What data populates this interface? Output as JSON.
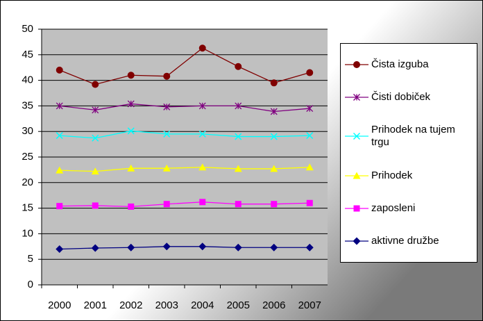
{
  "chart_data": {
    "type": "line",
    "categories": [
      "2000",
      "2001",
      "2002",
      "2003",
      "2004",
      "2005",
      "2006",
      "2007"
    ],
    "series": [
      {
        "name": "Čista izguba",
        "color": "#800000",
        "marker": "circle",
        "values": [
          42,
          39.2,
          41,
          40.8,
          46.3,
          42.7,
          39.5,
          41.5
        ]
      },
      {
        "name": "Čisti dobiček",
        "color": "#800080",
        "marker": "star",
        "values": [
          35,
          34.2,
          35.4,
          34.8,
          35,
          35,
          33.9,
          34.5
        ]
      },
      {
        "name": "Prihodek na tujem trgu",
        "color": "#00ffff",
        "marker": "x",
        "values": [
          29.2,
          28.7,
          30.1,
          29.5,
          29.5,
          29,
          29,
          29.2
        ]
      },
      {
        "name": "Prihodek",
        "color": "#ffff00",
        "marker": "triangle",
        "values": [
          22.4,
          22.2,
          22.8,
          22.8,
          23,
          22.7,
          22.7,
          23
        ]
      },
      {
        "name": "zaposleni",
        "color": "#ff00ff",
        "marker": "square",
        "values": [
          15.4,
          15.5,
          15.3,
          15.8,
          16.2,
          15.8,
          15.8,
          16
        ]
      },
      {
        "name": "aktivne družbe",
        "color": "#000080",
        "marker": "diamond",
        "values": [
          7,
          7.2,
          7.3,
          7.5,
          7.5,
          7.3,
          7.3,
          7.3
        ]
      }
    ],
    "ylim": [
      0,
      50
    ],
    "yticks": [
      0,
      5,
      10,
      15,
      20,
      25,
      30,
      35,
      40,
      45,
      50
    ],
    "grid": true,
    "legend": "right"
  }
}
